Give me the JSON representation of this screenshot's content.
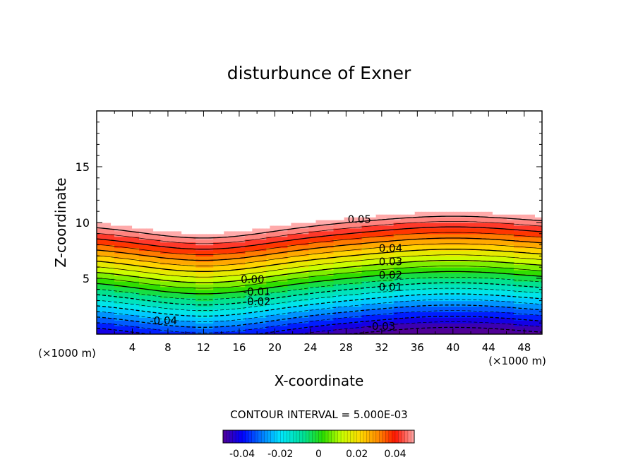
{
  "chart_data": {
    "type": "heatmap",
    "title": "disturbunce of Exner",
    "xlabel": "X-coordinate",
    "ylabel": "Z-coordinate",
    "x_unit": "(×1000 m)",
    "x_unit_right": "(×1000 m)",
    "xlim": [
      0,
      50
    ],
    "ylim": [
      0,
      20
    ],
    "x_ticks": [
      4,
      8,
      12,
      16,
      20,
      24,
      28,
      32,
      36,
      40,
      44,
      48
    ],
    "y_ticks": [
      5,
      10,
      15
    ],
    "contour_interval_text": "CONTOUR INTERVAL = 5.000E-03",
    "contour_interval": 0.005,
    "contour_labels": [
      {
        "text": "0.05",
        "x": 29.5,
        "z": 10.3
      },
      {
        "text": "0.04",
        "x": 33,
        "z": 7.7
      },
      {
        "text": "0.03",
        "x": 33,
        "z": 6.5
      },
      {
        "text": "0.02",
        "x": 33,
        "z": 5.3
      },
      {
        "text": "0.01",
        "x": 33,
        "z": 4.2
      },
      {
        "text": "0.00",
        "x": 17.5,
        "z": 4.9
      },
      {
        "text": "-0.01",
        "x": 18,
        "z": 3.8
      },
      {
        "text": "-0.02",
        "x": 18,
        "z": 2.9
      },
      {
        "text": "-0.04",
        "x": 7.5,
        "z": 1.2
      },
      {
        "text": "-0.03",
        "x": 32,
        "z": 0.7
      }
    ],
    "colorbar": {
      "ticks": [
        "-0.04",
        "-0.02",
        "0",
        "0.02",
        "0.04"
      ],
      "tick_values": [
        -0.04,
        -0.02,
        0,
        0.02,
        0.04
      ],
      "range": [
        -0.05,
        0.05
      ]
    },
    "field_description_values": {
      "min": -0.05,
      "max": 0.05,
      "above_max_color": "#ffffff"
    }
  },
  "colors": {
    "background": "#ffffff",
    "axes": "#000000"
  }
}
